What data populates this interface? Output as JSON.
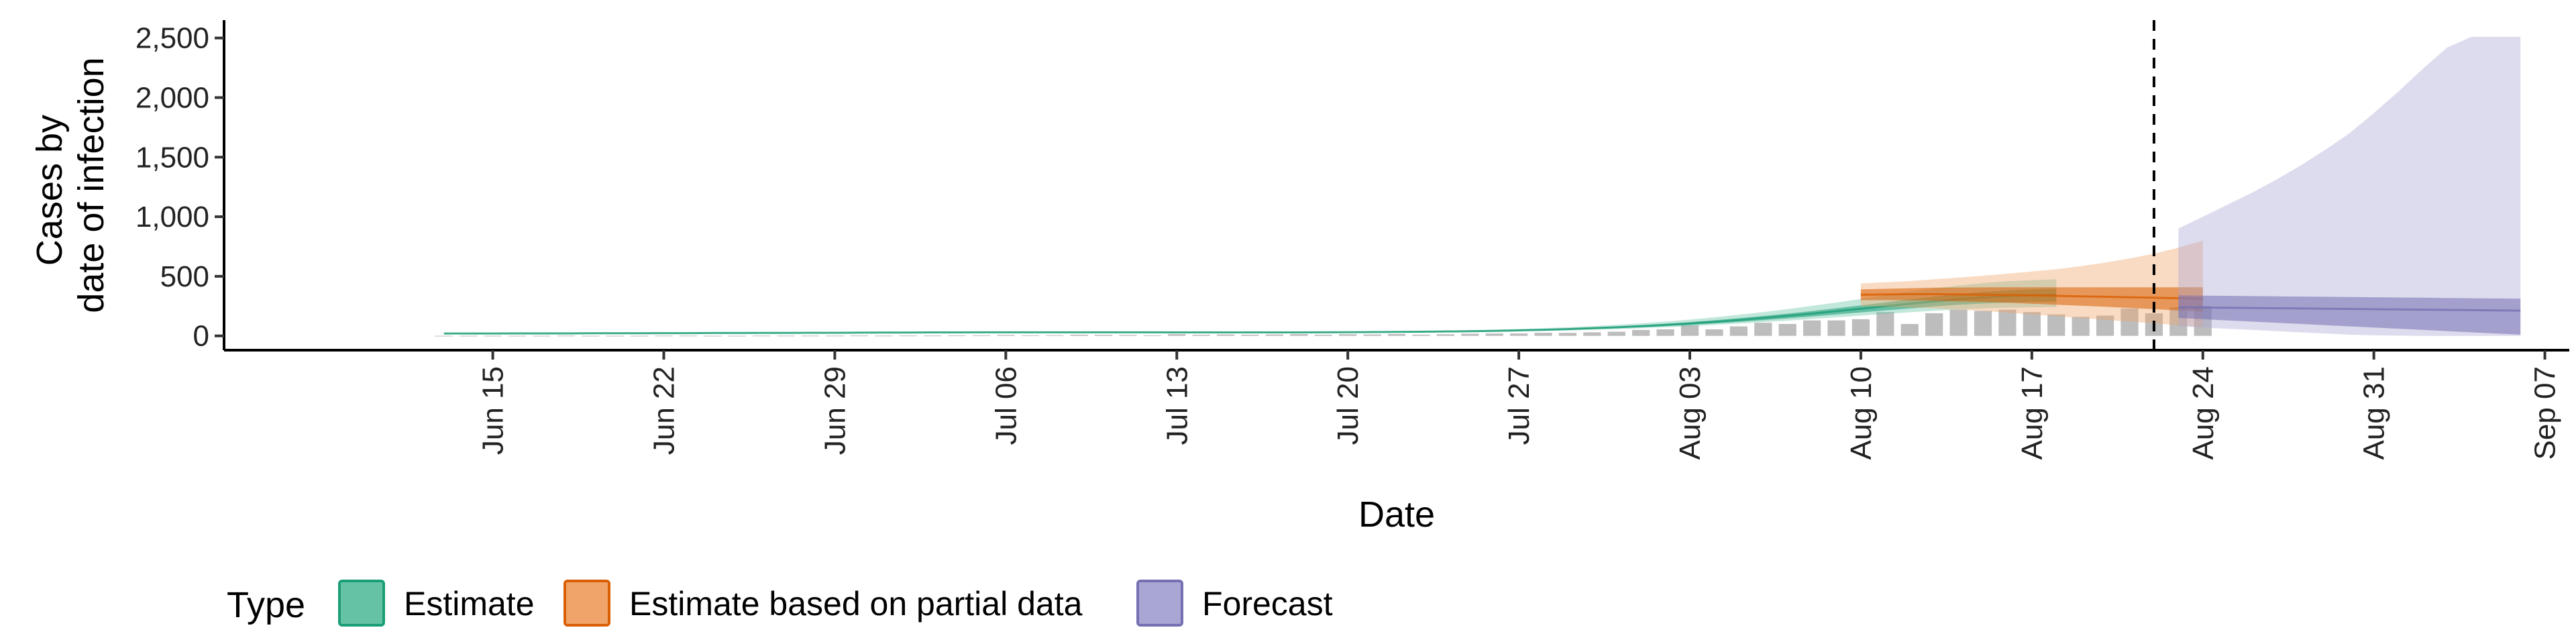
{
  "chart_data": {
    "type": "area",
    "xlabel": "Date",
    "ylabel_lines": [
      "Cases by",
      "date of infection"
    ],
    "x_range": [
      "2020-06-04",
      "2020-09-08"
    ],
    "ylim": [
      -120,
      2650
    ],
    "y_ticks": [
      0,
      500,
      1000,
      1500,
      2000,
      2500
    ],
    "y_tick_labels": [
      "0",
      "500",
      "1,000",
      "1,500",
      "2,000",
      "2,500"
    ],
    "x_ticks": [
      "2020-06-15",
      "2020-06-22",
      "2020-06-29",
      "2020-07-06",
      "2020-07-13",
      "2020-07-20",
      "2020-07-27",
      "2020-08-03",
      "2020-08-10",
      "2020-08-17",
      "2020-08-24",
      "2020-08-31",
      "2020-09-07"
    ],
    "x_tick_labels": [
      "Jun 15",
      "Jun 22",
      "Jun 29",
      "Jul 06",
      "Jul 13",
      "Jul 20",
      "Jul 27",
      "Aug 03",
      "Aug 10",
      "Aug 17",
      "Aug 24",
      "Aug 31",
      "Sep 07"
    ],
    "vline_date": "2020-08-22",
    "grid": false,
    "legend": {
      "title": "Type",
      "placement": "bottom",
      "items": [
        {
          "label": "Estimate",
          "fill": "#66c2a5",
          "stroke": "#1b9e77"
        },
        {
          "label": "Estimate based on partial data",
          "fill": "#f0a46a",
          "stroke": "#d95f02"
        },
        {
          "label": "Forecast",
          "fill": "#a9a6d4",
          "stroke": "#7570b3"
        }
      ]
    },
    "observed_cases": {
      "color": "#bdbdbd",
      "start": "2020-06-13",
      "values": [
        1,
        1,
        1,
        1,
        1,
        2,
        1,
        1,
        1,
        2,
        2,
        1,
        1,
        2,
        2,
        2,
        2,
        3,
        2,
        3,
        3,
        4,
        5,
        8,
        5,
        6,
        10,
        9,
        8,
        5,
        15,
        9,
        12,
        10,
        12,
        15,
        10,
        14,
        12,
        16,
        10,
        14,
        18,
        20,
        20,
        26,
        25,
        30,
        35,
        50,
        55,
        90,
        55,
        80,
        110,
        100,
        130,
        130,
        140,
        200,
        100,
        190,
        220,
        210,
        220,
        200,
        180,
        160,
        170,
        230,
        190,
        240,
        250
      ]
    },
    "series": [
      {
        "name": "Estimate",
        "start": "2020-06-13",
        "fill": "#66c2a5",
        "stroke": "#1b9e77",
        "median": [
          20,
          20,
          20,
          21,
          21,
          21,
          22,
          22,
          22,
          23,
          23,
          24,
          24,
          25,
          25,
          26,
          26,
          27,
          28,
          28,
          29,
          29,
          30,
          30,
          30,
          30,
          30,
          30,
          30,
          30,
          29,
          29,
          29,
          29,
          29,
          29,
          30,
          31,
          32,
          33,
          35,
          37,
          39,
          42,
          46,
          51,
          57,
          64,
          72,
          81,
          92,
          104,
          118,
          133,
          150,
          168,
          187,
          207,
          228,
          249,
          270,
          290,
          308,
          322,
          333,
          340,
          345
        ],
        "inner_low": [
          18,
          18,
          18,
          19,
          19,
          19,
          20,
          20,
          20,
          21,
          21,
          22,
          22,
          23,
          23,
          24,
          24,
          25,
          26,
          26,
          27,
          27,
          28,
          28,
          28,
          28,
          28,
          28,
          28,
          28,
          27,
          27,
          27,
          27,
          27,
          27,
          28,
          29,
          30,
          31,
          32,
          34,
          36,
          38,
          42,
          46,
          51,
          57,
          64,
          72,
          81,
          92,
          104,
          117,
          132,
          147,
          163,
          180,
          197,
          214,
          231,
          247,
          261,
          272,
          280,
          285,
          288
        ],
        "inner_high": [
          22,
          22,
          22,
          23,
          23,
          23,
          24,
          24,
          24,
          25,
          25,
          26,
          26,
          27,
          27,
          28,
          28,
          29,
          30,
          30,
          31,
          31,
          32,
          32,
          32,
          32,
          32,
          32,
          32,
          32,
          31,
          31,
          31,
          31,
          31,
          31,
          32,
          33,
          34,
          35,
          37,
          39,
          42,
          45,
          50,
          55,
          62,
          70,
          79,
          89,
          101,
          115,
          131,
          148,
          167,
          187,
          209,
          232,
          256,
          281,
          306,
          330,
          352,
          369,
          382,
          391,
          397
        ],
        "outer_low": [
          16,
          16,
          16,
          17,
          17,
          17,
          18,
          18,
          18,
          19,
          19,
          20,
          20,
          21,
          21,
          22,
          22,
          23,
          24,
          24,
          25,
          25,
          26,
          26,
          26,
          26,
          26,
          26,
          26,
          26,
          25,
          25,
          25,
          25,
          25,
          25,
          26,
          27,
          28,
          28,
          29,
          31,
          33,
          35,
          38,
          42,
          46,
          51,
          57,
          64,
          72,
          81,
          92,
          103,
          115,
          128,
          142,
          156,
          170,
          184,
          198,
          211,
          222,
          230,
          236,
          240,
          242
        ],
        "outer_high": [
          25,
          25,
          25,
          26,
          26,
          26,
          27,
          27,
          27,
          28,
          28,
          29,
          29,
          30,
          31,
          32,
          32,
          33,
          34,
          34,
          35,
          35,
          36,
          36,
          36,
          36,
          36,
          36,
          36,
          36,
          35,
          35,
          35,
          35,
          35,
          35,
          36,
          37,
          38,
          40,
          42,
          45,
          48,
          52,
          58,
          64,
          72,
          82,
          93,
          105,
          120,
          137,
          156,
          177,
          200,
          225,
          252,
          280,
          310,
          340,
          370,
          398,
          423,
          443,
          458,
          468,
          475
        ]
      },
      {
        "name": "Estimate based on partial data",
        "start": "2020-08-10",
        "fill": "#f0a46a",
        "stroke": "#d95f02",
        "median": [
          345,
          348,
          350,
          350,
          348,
          346,
          343,
          340,
          336,
          332,
          328,
          324,
          320,
          316,
          312
        ],
        "inner_low": [
          300,
          300,
          298,
          295,
          290,
          285,
          278,
          270,
          262,
          253,
          244,
          234,
          224,
          214,
          204
        ],
        "inner_high": [
          390,
          395,
          400,
          405,
          406,
          407,
          408,
          408,
          408,
          408,
          408,
          408,
          408,
          408,
          408
        ],
        "outer_low": [
          250,
          245,
          238,
          230,
          220,
          208,
          195,
          180,
          165,
          150,
          135,
          120,
          105,
          90,
          75
        ],
        "outer_high": [
          440,
          450,
          460,
          475,
          490,
          505,
          522,
          540,
          560,
          585,
          615,
          650,
          690,
          740,
          800
        ]
      },
      {
        "name": "Forecast",
        "start": "2020-08-23",
        "fill": "#a9a6d4",
        "stroke": "#7570b3",
        "median": [
          240,
          238,
          236,
          234,
          232,
          230,
          228,
          226,
          224,
          222,
          220,
          218,
          216,
          214,
          212
        ],
        "inner_low": [
          150,
          140,
          130,
          120,
          110,
          100,
          90,
          80,
          70,
          60,
          50,
          40,
          30,
          20,
          10
        ],
        "inner_high": [
          340,
          338,
          336,
          334,
          332,
          330,
          328,
          326,
          324,
          322,
          320,
          318,
          316,
          314,
          312
        ],
        "outer_low": [
          80,
          70,
          60,
          50,
          40,
          30,
          20,
          10,
          5,
          2,
          0,
          0,
          0,
          0,
          0
        ],
        "outer_high": [
          900,
          1000,
          1100,
          1200,
          1310,
          1430,
          1560,
          1700,
          1870,
          2050,
          2240,
          2420,
          2510,
          2510,
          2510
        ]
      }
    ]
  }
}
